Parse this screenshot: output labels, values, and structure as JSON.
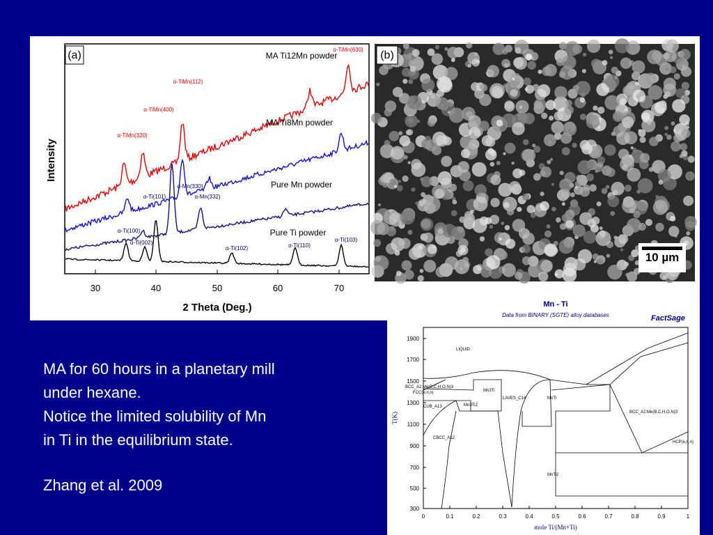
{
  "text": {
    "lines": [
      "MA for 60 hours in a planetary mill",
      "under hexane.",
      "Notice the limited solubility of Mn",
      "in Ti in the equilibrium state."
    ],
    "citation": "Zhang et al. 2009"
  },
  "figure_a": {
    "label": "(a)",
    "y_label": "Intensity",
    "x_label": "2 Theta (Deg.)",
    "x_ticks": [
      "30",
      "40",
      "50",
      "60",
      "70"
    ],
    "series_labels": [
      "MA Ti12Mn powder",
      "MA Ti8Mn powder",
      "Pure Mn powder",
      "Pure Ti powder"
    ],
    "peak_labels": [
      "α-TiMn(630)",
      "α-TiMn(112)",
      "α-TiMn(400)",
      "α-TiMn(320)",
      "α-Mn(330)",
      "α-Mn(332)",
      "α-Ti(101)",
      "α-Ti(100)",
      "α-Ti(002)",
      "α-Ti(102)",
      "α-Ti(110)",
      "α-Ti(103)"
    ]
  },
  "figure_b": {
    "label": "(b)",
    "scale_bar": "10 µm"
  },
  "figure_c": {
    "title": "Mn - Ti",
    "subtitle": "Data from BINARY (SGTE) alloy databases",
    "logo": "FactSage",
    "y_label": "T(K)",
    "x_label": "mole Ti/(Mn+Ti)",
    "y_ticks": [
      "1900",
      "1700",
      "1500",
      "1300",
      "1100",
      "900",
      "700",
      "500",
      "300"
    ],
    "x_ticks": [
      "0",
      "0.1",
      "0.2",
      "0.3",
      "0.4",
      "0.5",
      "0.6",
      "0.7",
      "0.8",
      "0.9",
      "1"
    ],
    "phase_labels": [
      "LIQUID",
      "BCC_A2:Me(B,C,H,O,N)3",
      "FCC(e,n,n)",
      "Mn3Ti",
      "LAVES_C14",
      "MnTi",
      "CUB_A13",
      "Mn3Ti2",
      "BCC_A2:Me(B,C,H,O,N)3",
      "CBCC_A12",
      "HCP(e,n,n)",
      "MnTi2"
    ]
  }
}
